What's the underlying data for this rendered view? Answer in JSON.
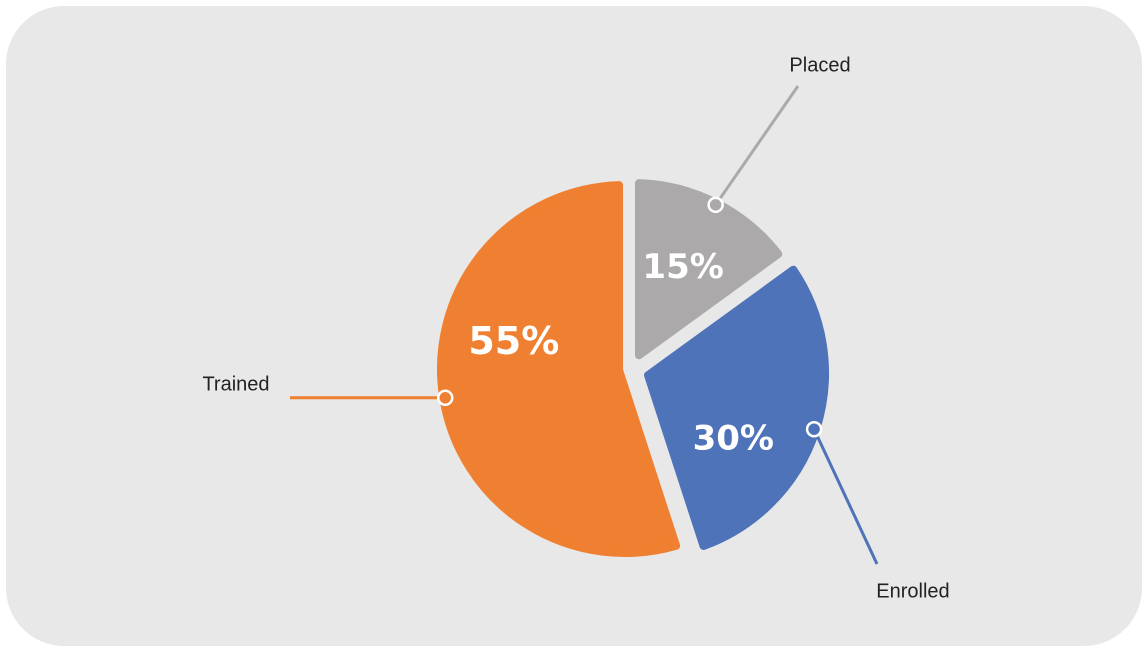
{
  "chart_data": {
    "type": "pie",
    "slices": [
      {
        "label": "Placed",
        "value": 15,
        "value_label": "15%",
        "color": "#aba9a9"
      },
      {
        "label": "Enrolled",
        "value": 30,
        "value_label": "30%",
        "color": "#4e73b8"
      },
      {
        "label": "Trained",
        "value": 55,
        "value_label": "55%",
        "color": "#f08031"
      }
    ],
    "background": "#e9e8e8"
  }
}
